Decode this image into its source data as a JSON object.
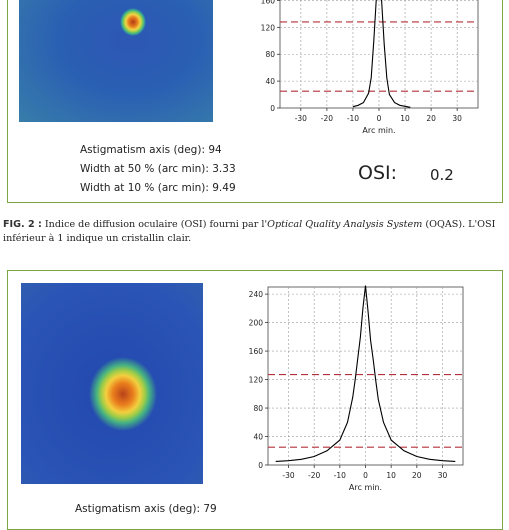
{
  "panels": [
    {
      "info_lines": [
        "Astigmatism axis (deg): 94",
        "Width at 50 % (arc min): 3.33",
        "Width at 10 % (arc min): 9.49"
      ],
      "osi_label": "OSI:",
      "osi_value": "0.2"
    },
    {
      "info_lines": [
        "Astigmatism axis (deg): 79"
      ]
    }
  ],
  "caption": {
    "fig_label": "FIG. 2 :",
    "text_before": " Indice de diffusion oculaire (OSI) fourni par l'",
    "italic": "Optical Quality Analysis System",
    "text_after": " (OQAS). L'OSI inférieur à 1 indique un cristallin clair."
  },
  "colors": {
    "frame": "#7ba642",
    "reference_line": "#b5303b",
    "curve": "#000000",
    "grid": "#9a9a9a"
  },
  "chart_data": [
    {
      "type": "line",
      "xlabel": "Arc min.",
      "ylabel": "",
      "xlim": [
        -38,
        38
      ],
      "ylim": [
        0,
        250
      ],
      "x_ticks": [
        -30,
        -20,
        -10,
        0,
        10,
        20,
        30
      ],
      "y_ticks": [
        0,
        40,
        80,
        120,
        160
      ],
      "grid": true,
      "curve": {
        "x": [
          -10,
          -8,
          -6,
          -4,
          -3,
          -2,
          -1,
          -0.5,
          0,
          0.5,
          1,
          2,
          3,
          4,
          6,
          8,
          12
        ],
        "y": [
          2,
          4,
          8,
          22,
          45,
          100,
          165,
          190,
          195,
          188,
          160,
          95,
          45,
          20,
          8,
          4,
          1
        ]
      },
      "reference_lines_y": [
        128,
        25
      ]
    },
    {
      "type": "line",
      "xlabel": "Arc min.",
      "ylabel": "",
      "xlim": [
        -38,
        38
      ],
      "ylim": [
        0,
        250
      ],
      "x_ticks": [
        -30,
        -20,
        -10,
        0,
        10,
        20,
        30
      ],
      "y_ticks": [
        0,
        40,
        80,
        120,
        160,
        200,
        240
      ],
      "grid": true,
      "curve": {
        "x": [
          -35,
          -30,
          -25,
          -20,
          -15,
          -10,
          -7,
          -5,
          -4,
          -3,
          -2,
          -1,
          0,
          1,
          2,
          3,
          4,
          5,
          7,
          10,
          15,
          20,
          25,
          30,
          35
        ],
        "y": [
          5,
          6,
          8,
          12,
          20,
          35,
          60,
          95,
          120,
          150,
          180,
          220,
          252,
          215,
          175,
          148,
          118,
          92,
          60,
          35,
          20,
          12,
          8,
          6,
          5
        ]
      },
      "reference_lines_y": [
        127,
        25
      ]
    }
  ]
}
